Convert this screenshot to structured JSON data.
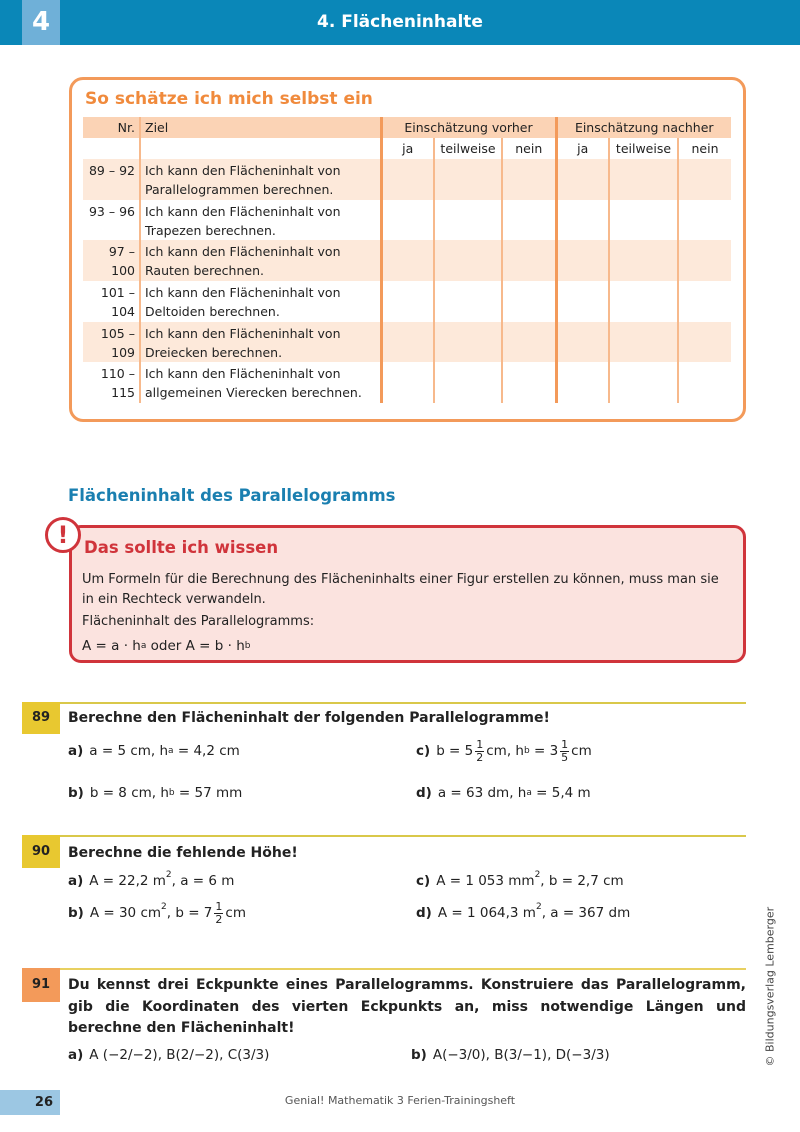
{
  "header": {
    "chapter": "4",
    "title": "4. Flächeninhalte"
  },
  "self_assessment": {
    "title": "So schätze ich mich selbst ein",
    "columns": {
      "nr": "Nr.",
      "goal": "Ziel",
      "before": "Einschätzung vorher",
      "after": "Einschätzung nachher",
      "ja": "ja",
      "teilweise": "teilweise",
      "nein": "nein"
    },
    "rows": [
      {
        "nr": "89 – 92",
        "goal": [
          "Ich kann den Flächeninhalt von",
          "Parallelogrammen berechnen."
        ]
      },
      {
        "nr": "93 – 96",
        "goal": [
          "Ich kann den Flächeninhalt von",
          "Trapezen berechnen."
        ]
      },
      {
        "nr": "97 – 100",
        "goal": [
          "Ich kann den Flächeninhalt von",
          "Rauten berechnen."
        ]
      },
      {
        "nr": "101 – 104",
        "goal": [
          "Ich kann den Flächeninhalt von",
          "Deltoiden berechnen."
        ]
      },
      {
        "nr": "105 – 109",
        "goal": [
          "Ich kann den Flächeninhalt von",
          "Dreiecken berechnen."
        ]
      },
      {
        "nr": "110 – 115",
        "goal": [
          "Ich kann den Flächeninhalt von",
          "allgemeinen Vierecken berechnen."
        ]
      }
    ]
  },
  "section_title": "Flächeninhalt des Parallelogramms",
  "info": {
    "icon": "exclamation-icon",
    "mark": "!",
    "title": "Das sollte ich wissen",
    "text1": "Um Formeln für die Berechnung des Flächeninhalts einer Figur erstellen zu können, muss man sie in ein Rechteck verwandeln.",
    "text2": "Flächeninhalt des Parallelogramms:",
    "formula": [
      {
        "t": "A = a · h"
      },
      {
        "sub": "a"
      },
      {
        "t": " oder A = b · h"
      },
      {
        "sub": "b"
      }
    ]
  },
  "exercises": [
    {
      "num": "89",
      "color": "#e8c830",
      "title": "Berechne den Flächeninhalt der folgenden Parallelogramme!",
      "items": [
        {
          "label": "a)",
          "expr": [
            {
              "t": "a = 5 cm, h"
            },
            {
              "sub": "a"
            },
            {
              "t": " = 4,2 cm"
            }
          ]
        },
        {
          "label": "c)",
          "expr": [
            {
              "t": "b = 5"
            },
            {
              "frac": [
                "1",
                "2"
              ]
            },
            {
              "t": "cm, h"
            },
            {
              "sub": "b"
            },
            {
              "t": " = 3"
            },
            {
              "frac": [
                "1",
                "5"
              ]
            },
            {
              "t": "cm"
            }
          ]
        },
        {
          "label": "b)",
          "expr": [
            {
              "t": "b = 8 cm, h"
            },
            {
              "sub": "b"
            },
            {
              "t": " = 57 mm"
            }
          ]
        },
        {
          "label": "d)",
          "expr": [
            {
              "t": "a = 63 dm, h"
            },
            {
              "sub": "a"
            },
            {
              "t": " = 5,4 m"
            }
          ]
        }
      ]
    },
    {
      "num": "90",
      "color": "#e8c830",
      "title": "Berechne die fehlende Höhe!",
      "items": [
        {
          "label": "a)",
          "expr": [
            {
              "t": "A = 22,2 m"
            },
            {
              "sup": "2"
            },
            {
              "t": ", a = 6 m"
            }
          ]
        },
        {
          "label": "c)",
          "expr": [
            {
              "t": "A = 1 053 mm"
            },
            {
              "sup": "2"
            },
            {
              "t": ", b = 2,7 cm"
            }
          ]
        },
        {
          "label": "b)",
          "expr": [
            {
              "t": "A = 30 cm"
            },
            {
              "sup": "2"
            },
            {
              "t": ", b = 7"
            },
            {
              "frac": [
                "1",
                "2"
              ]
            },
            {
              "t": "cm"
            }
          ]
        },
        {
          "label": "d)",
          "expr": [
            {
              "t": "A = 1 064,3 m"
            },
            {
              "sup": "2"
            },
            {
              "t": ", a = 367 dm"
            }
          ]
        }
      ]
    },
    {
      "num": "91",
      "color": "#f39a5a",
      "title": "Du kennst drei Eckpunkte eines Parallelogramms. Konstruiere das Parallelogramm, gib die Koordinaten des vierten Eckpunkts an, miss notwendige Längen und berechne den Flächen­inhalt!",
      "items": [
        {
          "label": "a)",
          "expr": [
            {
              "t": "A (−2/−2), B(2/−2), C(3/3)"
            }
          ]
        },
        {
          "label": "b)",
          "expr": [
            {
              "t": "A(−3/0), B(3/−1), D(−3/3)"
            }
          ]
        }
      ]
    }
  ],
  "footer": {
    "page": "26",
    "text": "Genial! Mathematik 3 Ferien-Trainingsheft",
    "copyright": "© Bildungsverlag Lemberger"
  },
  "colors": {
    "header": "#0a87b8",
    "orange": "#f39a5a",
    "red": "#d0343b",
    "blue_title": "#1a7fb0",
    "yellow": "#e8c830"
  }
}
